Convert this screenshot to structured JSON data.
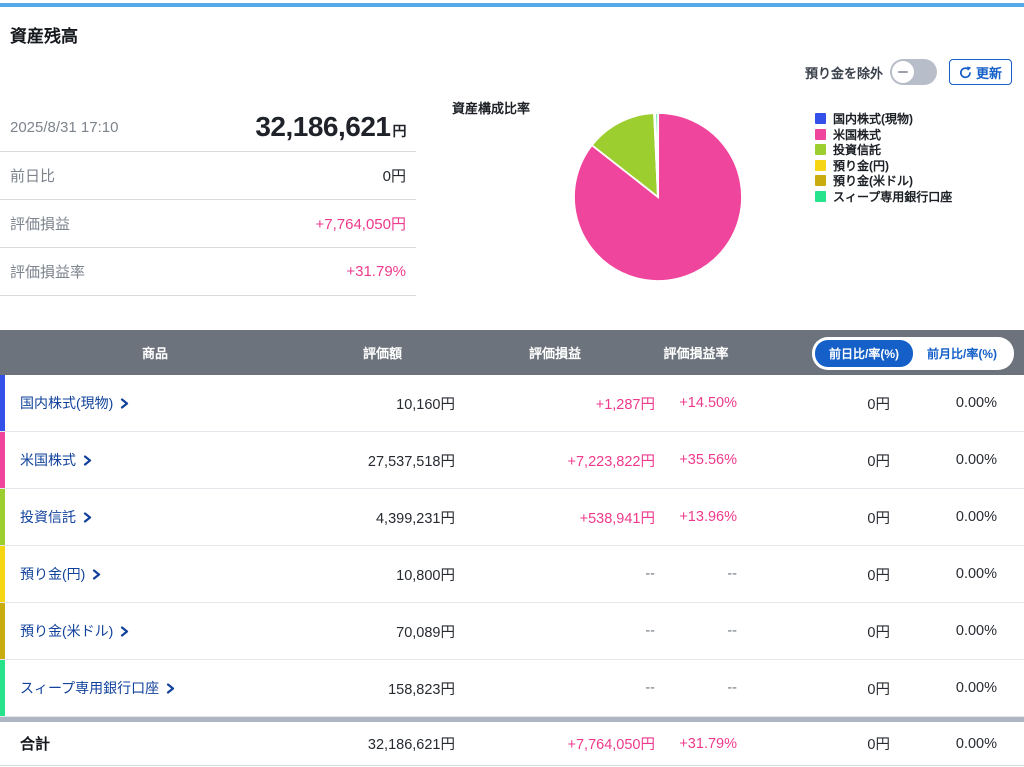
{
  "page": {
    "title": "資産残高"
  },
  "colors": {
    "topbar": "#55a9e6",
    "accent_blue": "#1560c8",
    "link_blue": "#11419b",
    "pink_text": "#ee3a8c",
    "header_gray": "#6d737c"
  },
  "controls": {
    "toggle_label": "預り金を除外",
    "toggle_state": "off",
    "refresh_label": "更新"
  },
  "summary": {
    "timestamp": "2025/8/31 17:10",
    "total_value": "32,186,621",
    "total_unit": "円",
    "rows": [
      {
        "label": "前日比",
        "value": "0円",
        "pink": false
      },
      {
        "label": "評価損益",
        "value": "+7,764,050円",
        "pink": true
      },
      {
        "label": "評価損益率",
        "value": "+31.79%",
        "pink": true
      }
    ]
  },
  "chart_data": {
    "type": "pie",
    "title": "資産構成比率",
    "labels": [
      "国内株式(現物)",
      "米国株式",
      "投資信託",
      "預り金(円)",
      "預り金(米ドル)",
      "スィープ専用銀行口座"
    ],
    "values": [
      10160,
      27537518,
      4399231,
      10800,
      70089,
      158823
    ],
    "percents": [
      0.03,
      85.56,
      13.67,
      0.03,
      0.22,
      0.49
    ],
    "colors": [
      "#3351e9",
      "#f0459c",
      "#9bce2e",
      "#f5d514",
      "#c9ad10",
      "#27e38c"
    ],
    "start_angle_deg": -90,
    "direction": "clockwise",
    "legend_position": "right"
  },
  "table": {
    "headers": [
      "商品",
      "評価額",
      "評価損益",
      "評価損益率"
    ],
    "toggle_buttons": [
      {
        "label": "前日比/率(%)",
        "active": true
      },
      {
        "label": "前月比/率(%)",
        "active": false
      }
    ],
    "rows": [
      {
        "product": "国内株式(現物)",
        "value": "10,160円",
        "pl": "+1,287円",
        "pl_rate": "+14.50%",
        "day_change": "0円",
        "day_rate": "0.00%",
        "color": "#3351e9"
      },
      {
        "product": "米国株式",
        "value": "27,537,518円",
        "pl": "+7,223,822円",
        "pl_rate": "+35.56%",
        "day_change": "0円",
        "day_rate": "0.00%",
        "color": "#f0459c"
      },
      {
        "product": "投資信託",
        "value": "4,399,231円",
        "pl": "+538,941円",
        "pl_rate": "+13.96%",
        "day_change": "0円",
        "day_rate": "0.00%",
        "color": "#9bce2e"
      },
      {
        "product": "預り金(円)",
        "value": "10,800円",
        "pl": "--",
        "pl_rate": "--",
        "day_change": "0円",
        "day_rate": "0.00%",
        "color": "#f5d514"
      },
      {
        "product": "預り金(米ドル)",
        "value": "70,089円",
        "pl": "--",
        "pl_rate": "--",
        "day_change": "0円",
        "day_rate": "0.00%",
        "color": "#c9ad10"
      },
      {
        "product": "スィープ専用銀行口座",
        "value": "158,823円",
        "pl": "--",
        "pl_rate": "--",
        "day_change": "0円",
        "day_rate": "0.00%",
        "color": "#27e38c"
      }
    ],
    "total": {
      "label": "合計",
      "value": "32,186,621円",
      "pl": "+7,764,050円",
      "pl_rate": "+31.79%",
      "day_change": "0円",
      "day_rate": "0.00%"
    }
  }
}
